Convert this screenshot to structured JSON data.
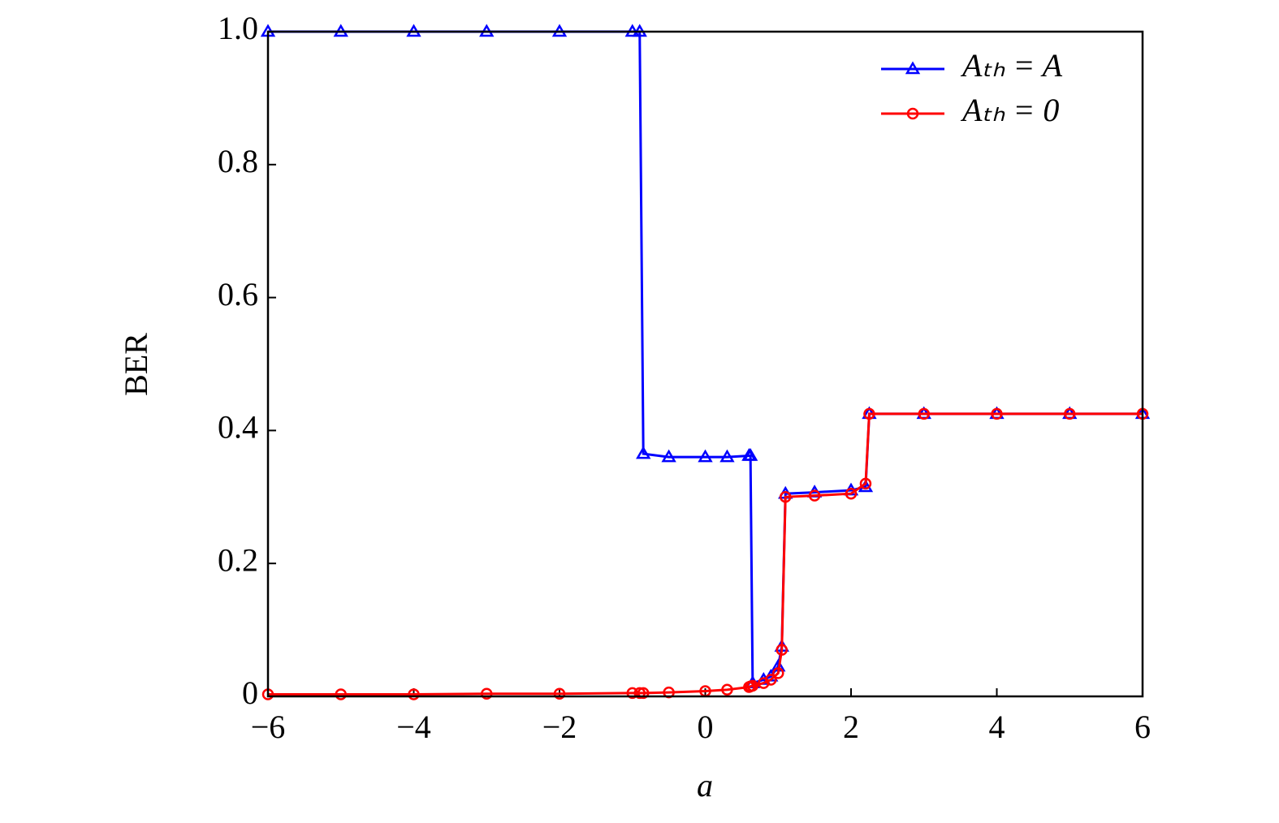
{
  "chart_data": {
    "type": "line",
    "x_label": "a",
    "y_label": "BER",
    "x": [
      -6,
      -5,
      -4,
      -3,
      -2,
      -1,
      -0.9,
      -0.85,
      -0.5,
      0,
      0.3,
      0.6,
      0.62,
      0.65,
      0.8,
      0.9,
      1.0,
      1.05,
      1.1,
      1.5,
      2.0,
      2.2,
      2.25,
      3,
      4,
      5,
      6
    ],
    "series": [
      {
        "name": "Aₜₕ = A",
        "color": "#0000ff",
        "marker": "triangle",
        "values": [
          1,
          1,
          1,
          1,
          1,
          1,
          1,
          0.365,
          0.36,
          0.36,
          0.36,
          0.362,
          0.362,
          0.02,
          0.025,
          0.03,
          0.045,
          0.075,
          0.305,
          0.307,
          0.31,
          0.315,
          0.425,
          0.425,
          0.425,
          0.425,
          0.425
        ]
      },
      {
        "name": "Aₜₕ = 0",
        "color": "#ff0000",
        "marker": "circle",
        "values": [
          0.003,
          0.003,
          0.003,
          0.004,
          0.004,
          0.005,
          0.005,
          0.005,
          0.006,
          0.008,
          0.01,
          0.014,
          0.015,
          0.016,
          0.02,
          0.025,
          0.035,
          0.07,
          0.3,
          0.302,
          0.305,
          0.32,
          0.425,
          0.425,
          0.425,
          0.425,
          0.425
        ]
      }
    ],
    "xlim": [
      -6,
      6
    ],
    "xticks": [
      {
        "value": -6,
        "label": "−6"
      },
      {
        "value": -4,
        "label": "−4"
      },
      {
        "value": -2,
        "label": "−2"
      },
      0,
      2,
      4,
      6
    ],
    "ylim": [
      0,
      1
    ],
    "yticks": [
      0,
      0.2,
      0.4,
      0.6,
      0.8,
      {
        "value": 1,
        "label": "1.0"
      }
    ],
    "legend": "upper right",
    "grid": false
  }
}
